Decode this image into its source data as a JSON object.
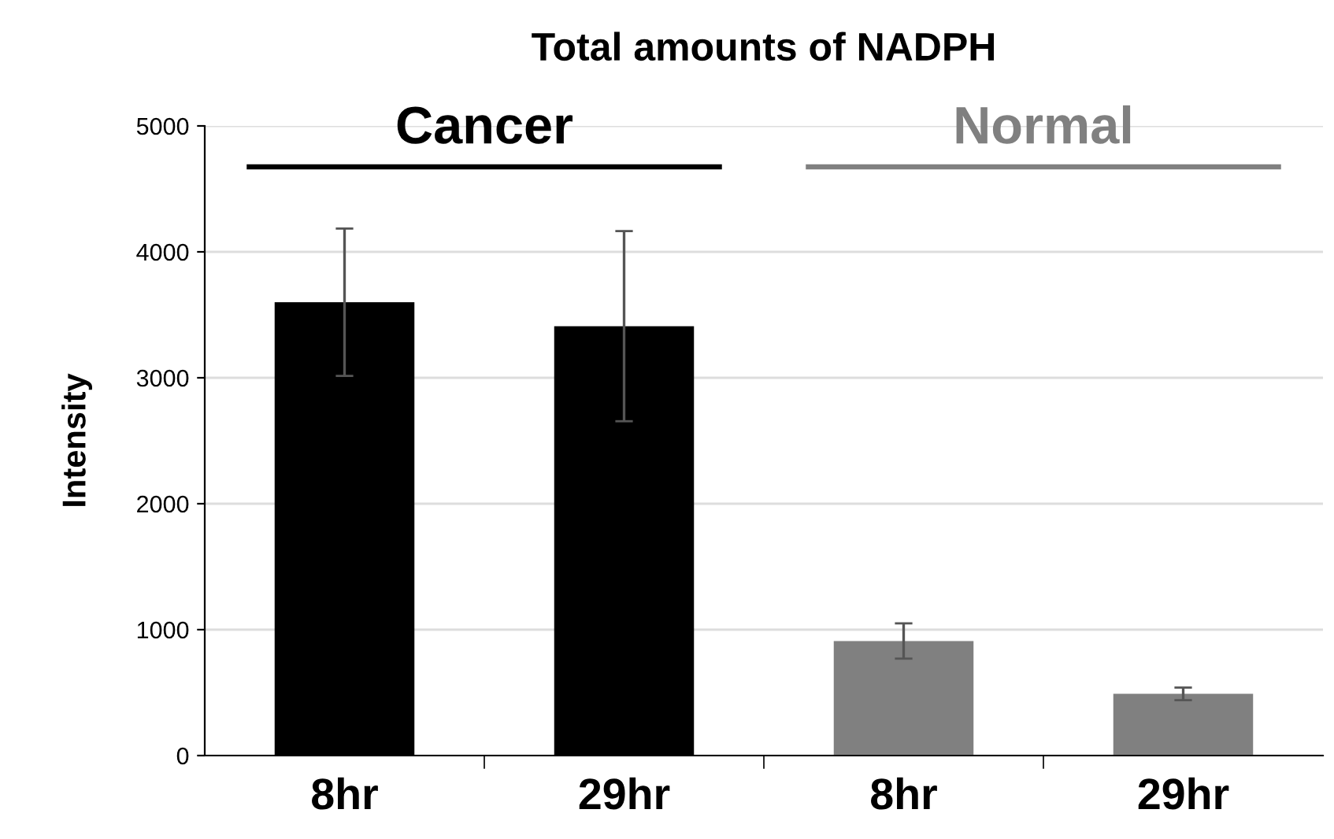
{
  "chart_data": {
    "type": "bar",
    "title": "Total amounts of NADPH",
    "ylabel": "Intensity",
    "categories": [
      "8hr",
      "29hr",
      "8hr",
      "29hr"
    ],
    "values": [
      3600,
      3410,
      910,
      490
    ],
    "errors": [
      585,
      755,
      140,
      50
    ],
    "colors": [
      "#000000",
      "#000000",
      "#808080",
      "#808080"
    ],
    "annotations": [
      "Cancer",
      "Normal"
    ],
    "ylim": [
      0,
      5000
    ],
    "yticks": [
      0,
      1000,
      2000,
      3000,
      4000,
      5000
    ],
    "grid": "y"
  }
}
